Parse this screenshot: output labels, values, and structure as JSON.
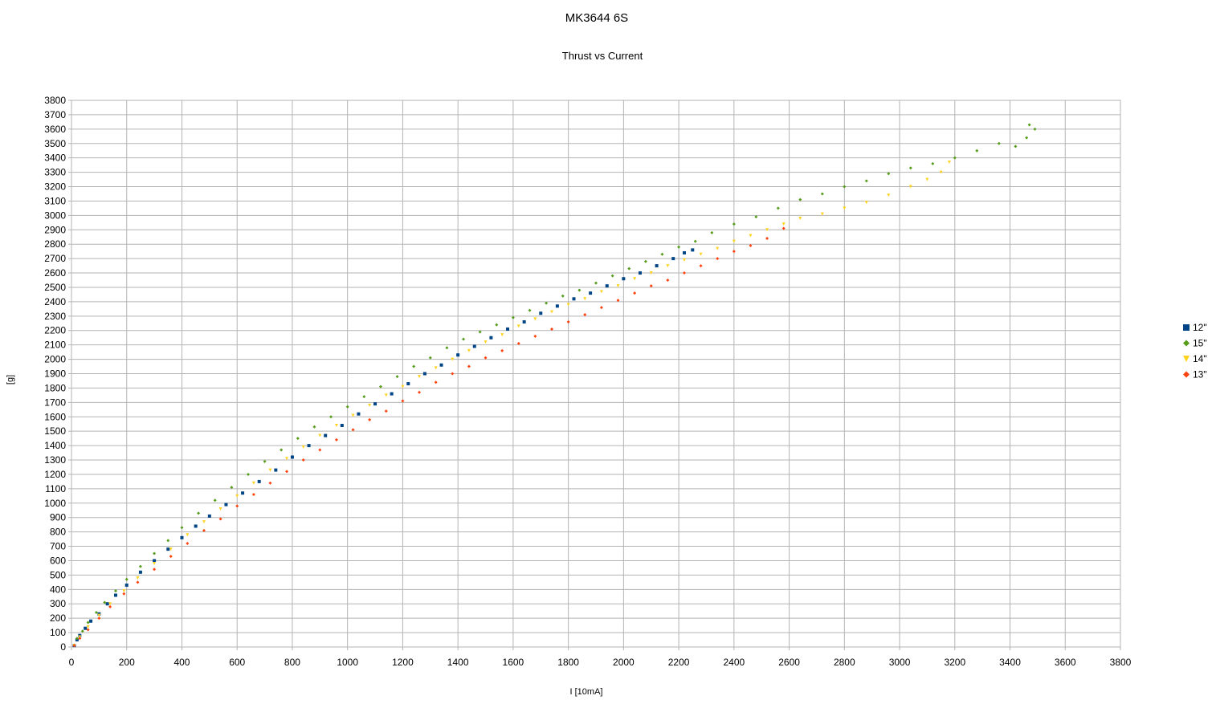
{
  "chart_data": {
    "type": "scatter",
    "title": "MK3644 6S",
    "subtitle": "Thrust vs Current",
    "xlabel": "I [10mA]",
    "ylabel": "[g]",
    "xlim": [
      0,
      3800
    ],
    "ylim": [
      0,
      3800
    ],
    "xticks": [
      0,
      200,
      400,
      600,
      800,
      1000,
      1200,
      1400,
      1600,
      1800,
      2000,
      2200,
      2400,
      2600,
      2800,
      3000,
      3200,
      3400,
      3600,
      3800
    ],
    "yticks": [
      0,
      100,
      200,
      300,
      400,
      500,
      600,
      700,
      800,
      900,
      1000,
      1100,
      1200,
      1300,
      1400,
      1500,
      1600,
      1700,
      1800,
      1900,
      2000,
      2100,
      2200,
      2300,
      2400,
      2500,
      2600,
      2700,
      2800,
      2900,
      3000,
      3100,
      3200,
      3300,
      3400,
      3500,
      3600,
      3700,
      3800
    ],
    "grid": true,
    "legend_position": "right",
    "series": [
      {
        "name": "12\"",
        "color": "#004586",
        "marker": "square",
        "points": [
          [
            10,
            10
          ],
          [
            20,
            50
          ],
          [
            30,
            80
          ],
          [
            50,
            130
          ],
          [
            70,
            180
          ],
          [
            100,
            230
          ],
          [
            130,
            300
          ],
          [
            160,
            360
          ],
          [
            200,
            430
          ],
          [
            250,
            520
          ],
          [
            300,
            600
          ],
          [
            350,
            680
          ],
          [
            400,
            760
          ],
          [
            450,
            840
          ],
          [
            500,
            910
          ],
          [
            560,
            990
          ],
          [
            620,
            1070
          ],
          [
            680,
            1150
          ],
          [
            740,
            1230
          ],
          [
            800,
            1320
          ],
          [
            860,
            1400
          ],
          [
            920,
            1470
          ],
          [
            980,
            1540
          ],
          [
            1040,
            1620
          ],
          [
            1100,
            1690
          ],
          [
            1160,
            1760
          ],
          [
            1220,
            1830
          ],
          [
            1280,
            1900
          ],
          [
            1340,
            1960
          ],
          [
            1400,
            2030
          ],
          [
            1460,
            2090
          ],
          [
            1520,
            2150
          ],
          [
            1580,
            2210
          ],
          [
            1640,
            2260
          ],
          [
            1700,
            2320
          ],
          [
            1760,
            2370
          ],
          [
            1820,
            2420
          ],
          [
            1880,
            2460
          ],
          [
            1940,
            2510
          ],
          [
            2000,
            2560
          ],
          [
            2060,
            2600
          ],
          [
            2120,
            2650
          ],
          [
            2180,
            2700
          ],
          [
            2220,
            2740
          ],
          [
            2250,
            2760
          ]
        ]
      },
      {
        "name": "15\"",
        "color": "#579d1c",
        "marker": "diamond",
        "points": [
          [
            10,
            10
          ],
          [
            20,
            60
          ],
          [
            40,
            110
          ],
          [
            60,
            170
          ],
          [
            90,
            240
          ],
          [
            120,
            310
          ],
          [
            160,
            390
          ],
          [
            200,
            470
          ],
          [
            250,
            560
          ],
          [
            300,
            650
          ],
          [
            350,
            740
          ],
          [
            400,
            830
          ],
          [
            460,
            930
          ],
          [
            520,
            1020
          ],
          [
            580,
            1110
          ],
          [
            640,
            1200
          ],
          [
            700,
            1290
          ],
          [
            760,
            1370
          ],
          [
            820,
            1450
          ],
          [
            880,
            1530
          ],
          [
            940,
            1600
          ],
          [
            1000,
            1670
          ],
          [
            1060,
            1740
          ],
          [
            1120,
            1810
          ],
          [
            1180,
            1880
          ],
          [
            1240,
            1950
          ],
          [
            1300,
            2010
          ],
          [
            1360,
            2080
          ],
          [
            1420,
            2140
          ],
          [
            1480,
            2190
          ],
          [
            1540,
            2240
          ],
          [
            1600,
            2290
          ],
          [
            1660,
            2340
          ],
          [
            1720,
            2390
          ],
          [
            1780,
            2440
          ],
          [
            1840,
            2480
          ],
          [
            1900,
            2530
          ],
          [
            1960,
            2580
          ],
          [
            2020,
            2630
          ],
          [
            2080,
            2680
          ],
          [
            2140,
            2730
          ],
          [
            2200,
            2780
          ],
          [
            2260,
            2820
          ],
          [
            2320,
            2880
          ],
          [
            2400,
            2940
          ],
          [
            2480,
            2990
          ],
          [
            2560,
            3050
          ],
          [
            2640,
            3110
          ],
          [
            2720,
            3150
          ],
          [
            2800,
            3200
          ],
          [
            2880,
            3240
          ],
          [
            2960,
            3290
          ],
          [
            3040,
            3330
          ],
          [
            3120,
            3360
          ],
          [
            3200,
            3400
          ],
          [
            3280,
            3450
          ],
          [
            3360,
            3500
          ],
          [
            3420,
            3480
          ],
          [
            3460,
            3540
          ],
          [
            3490,
            3600
          ],
          [
            3470,
            3630
          ]
        ]
      },
      {
        "name": "14\"",
        "color": "#ffd320",
        "marker": "triangle-down",
        "points": [
          [
            10,
            10
          ],
          [
            30,
            70
          ],
          [
            60,
            140
          ],
          [
            100,
            220
          ],
          [
            140,
            300
          ],
          [
            190,
            390
          ],
          [
            240,
            480
          ],
          [
            300,
            580
          ],
          [
            360,
            680
          ],
          [
            420,
            780
          ],
          [
            480,
            870
          ],
          [
            540,
            960
          ],
          [
            600,
            1050
          ],
          [
            660,
            1140
          ],
          [
            720,
            1230
          ],
          [
            780,
            1310
          ],
          [
            840,
            1390
          ],
          [
            900,
            1470
          ],
          [
            960,
            1540
          ],
          [
            1020,
            1610
          ],
          [
            1080,
            1680
          ],
          [
            1140,
            1750
          ],
          [
            1200,
            1810
          ],
          [
            1260,
            1880
          ],
          [
            1320,
            1940
          ],
          [
            1380,
            2000
          ],
          [
            1440,
            2060
          ],
          [
            1500,
            2120
          ],
          [
            1560,
            2170
          ],
          [
            1620,
            2230
          ],
          [
            1680,
            2280
          ],
          [
            1740,
            2330
          ],
          [
            1800,
            2380
          ],
          [
            1860,
            2420
          ],
          [
            1920,
            2470
          ],
          [
            1980,
            2510
          ],
          [
            2040,
            2560
          ],
          [
            2100,
            2600
          ],
          [
            2160,
            2650
          ],
          [
            2220,
            2690
          ],
          [
            2280,
            2730
          ],
          [
            2340,
            2770
          ],
          [
            2400,
            2820
          ],
          [
            2460,
            2860
          ],
          [
            2520,
            2900
          ],
          [
            2580,
            2940
          ],
          [
            2640,
            2980
          ],
          [
            2720,
            3010
          ],
          [
            2800,
            3050
          ],
          [
            2880,
            3090
          ],
          [
            2960,
            3140
          ],
          [
            3040,
            3200
          ],
          [
            3100,
            3250
          ],
          [
            3150,
            3300
          ],
          [
            3180,
            3370
          ]
        ]
      },
      {
        "name": "13\"",
        "color": "#ff420e",
        "marker": "diamond",
        "points": [
          [
            10,
            10
          ],
          [
            30,
            60
          ],
          [
            60,
            120
          ],
          [
            100,
            200
          ],
          [
            140,
            280
          ],
          [
            190,
            370
          ],
          [
            240,
            450
          ],
          [
            300,
            540
          ],
          [
            360,
            630
          ],
          [
            420,
            720
          ],
          [
            480,
            810
          ],
          [
            540,
            890
          ],
          [
            600,
            980
          ],
          [
            660,
            1060
          ],
          [
            720,
            1140
          ],
          [
            780,
            1220
          ],
          [
            840,
            1300
          ],
          [
            900,
            1370
          ],
          [
            960,
            1440
          ],
          [
            1020,
            1510
          ],
          [
            1080,
            1580
          ],
          [
            1140,
            1640
          ],
          [
            1200,
            1710
          ],
          [
            1260,
            1770
          ],
          [
            1320,
            1840
          ],
          [
            1380,
            1900
          ],
          [
            1440,
            1950
          ],
          [
            1500,
            2010
          ],
          [
            1560,
            2060
          ],
          [
            1620,
            2110
          ],
          [
            1680,
            2160
          ],
          [
            1740,
            2210
          ],
          [
            1800,
            2260
          ],
          [
            1860,
            2310
          ],
          [
            1920,
            2360
          ],
          [
            1980,
            2410
          ],
          [
            2040,
            2460
          ],
          [
            2100,
            2510
          ],
          [
            2160,
            2550
          ],
          [
            2220,
            2600
          ],
          [
            2280,
            2650
          ],
          [
            2340,
            2700
          ],
          [
            2400,
            2750
          ],
          [
            2460,
            2790
          ],
          [
            2520,
            2840
          ],
          [
            2580,
            2910
          ]
        ]
      }
    ]
  }
}
